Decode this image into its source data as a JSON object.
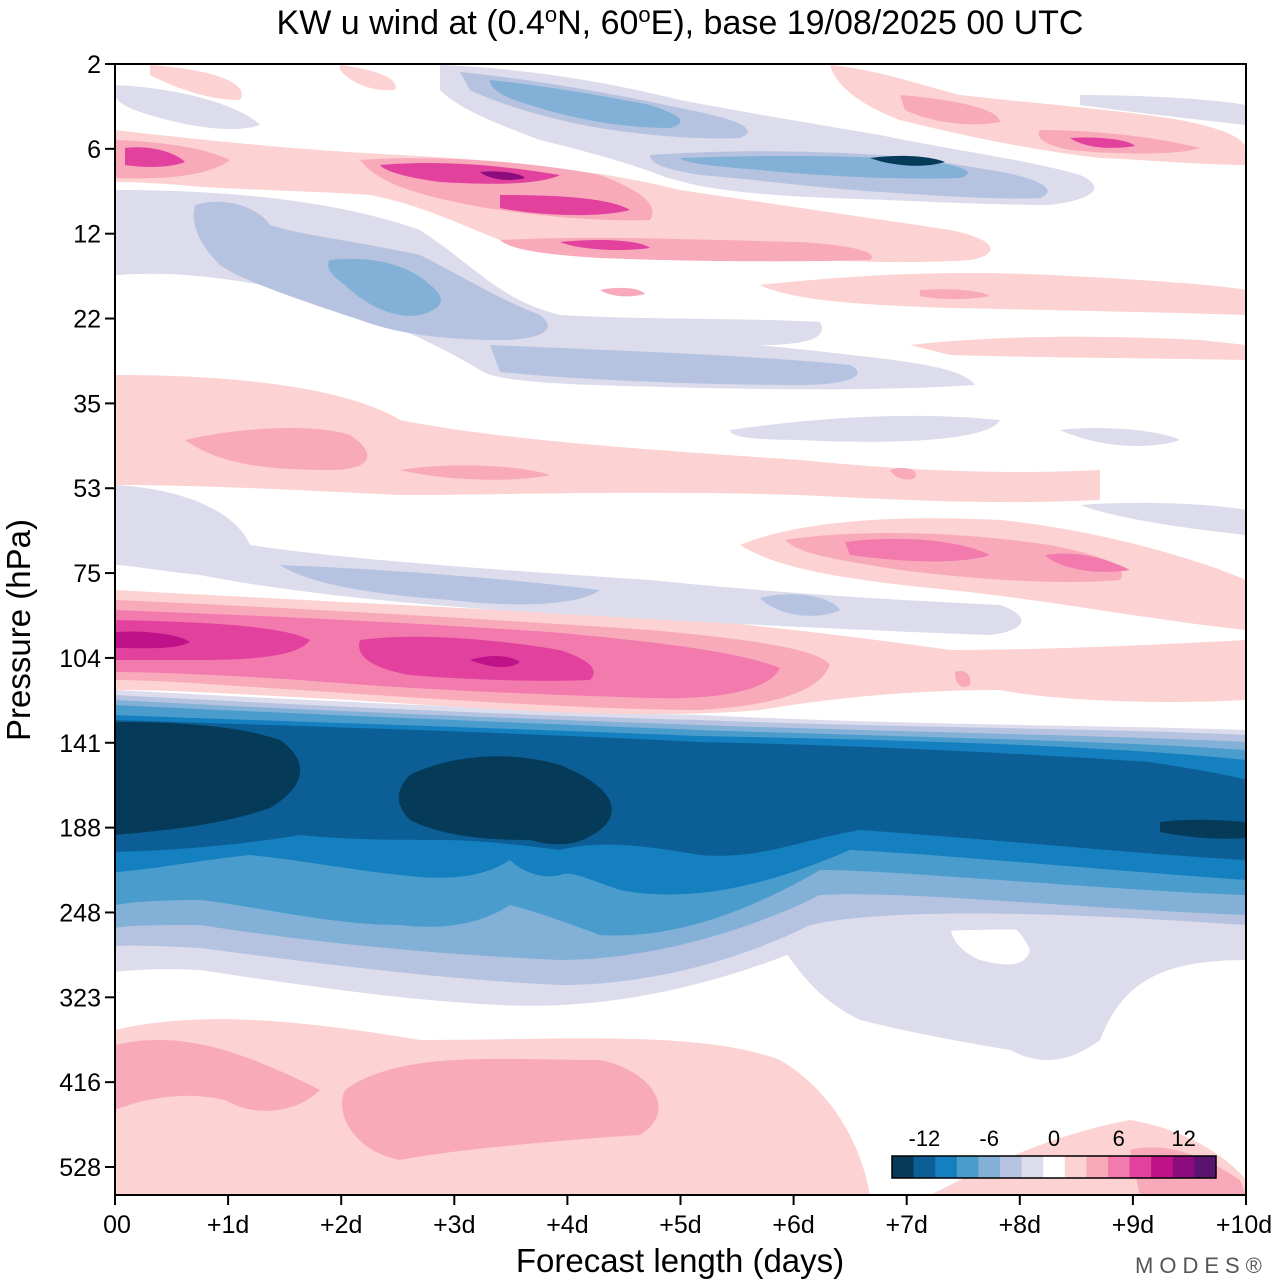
{
  "chart_data": {
    "type": "heatmap",
    "title": "KW u wind at (0.4°N, 60°E),  base 19/08/2025  00 UTC",
    "title_parts": {
      "pre": "KW u wind at (0.4",
      "deg1": "o",
      "mid": "N, 60",
      "deg2": "o",
      "post": "E),  base 19/08/2025  00 UTC"
    },
    "xlabel": "Forecast length (days)",
    "ylabel": "Pressure (hPa)",
    "x_ticks": [
      "00",
      "+1d",
      "+2d",
      "+3d",
      "+4d",
      "+5d",
      "+6d",
      "+7d",
      "+8d",
      "+9d",
      "+10d"
    ],
    "x_range_days": [
      0,
      10
    ],
    "y_ticks": [
      "2",
      "6",
      "12",
      "22",
      "35",
      "53",
      "75",
      "104",
      "141",
      "188",
      "248",
      "323",
      "416",
      "528"
    ],
    "colorbar": {
      "tick_labels": [
        "-12",
        "-6",
        "0",
        "6",
        "12"
      ],
      "level_step": 2,
      "colors": [
        "#053a59",
        "#0b5f96",
        "#1580c0",
        "#4a9ccc",
        "#82b0d6",
        "#b6c3e0",
        "#dcdcec",
        "#ffffff",
        "#fcd2d2",
        "#f8aabb",
        "#f27aad",
        "#e2429e",
        "#bf1188",
        "#8c0c7e",
        "#5a1470"
      ]
    },
    "features": [
      {
        "name": "easterly core",
        "value": -14,
        "x_days": [
          0,
          10
        ],
        "pressure_hPa": [
          141,
          215
        ]
      },
      {
        "name": "westerly band",
        "value": 12,
        "x_days": [
          0,
          6
        ],
        "pressure_hPa": [
          90,
          120
        ]
      },
      {
        "name": "upper westerly",
        "value": 10,
        "x_days": [
          0,
          5
        ],
        "pressure_hPa": [
          6,
          12
        ]
      },
      {
        "name": "upper easterly",
        "value": -10,
        "x_days": [
          3,
          8
        ],
        "pressure_hPa": [
          2,
          8
        ]
      },
      {
        "name": "lower westerly",
        "value": 4,
        "x_days": [
          0,
          6
        ],
        "pressure_hPa": [
          350,
          550
        ]
      }
    ]
  },
  "brand": "MODES®"
}
